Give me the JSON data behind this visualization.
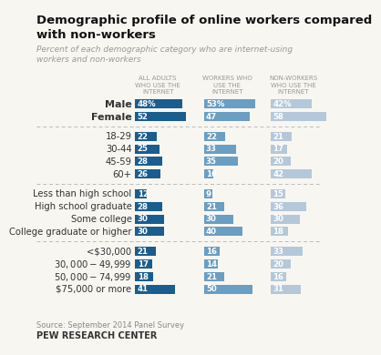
{
  "title": "Demographic profile of online workers compared\nwith non-workers",
  "subtitle": "Percent of each demographic category who are internet-using\nworkers and non-workers",
  "col_headers": [
    "ALL ADULTS\nWHO USE THE\nINTERNET",
    "WORKERS WHO\nUSE THE\nINTERNET",
    "NON-WORKERS\nWHO USE THE\nINTERNET"
  ],
  "color_col1": "#1a5d8f",
  "color_col2": "#6a9ec2",
  "color_col3": "#b4c8da",
  "sections": [
    {
      "rows": [
        {
          "label": "Male",
          "bold": true,
          "vals": [
            48,
            53,
            42
          ],
          "pct": true
        },
        {
          "label": "Female",
          "bold": true,
          "vals": [
            52,
            47,
            58
          ],
          "pct": false
        }
      ]
    },
    {
      "rows": [
        {
          "label": "18-29",
          "bold": false,
          "vals": [
            22,
            22,
            21
          ],
          "pct": false
        },
        {
          "label": "30-44",
          "bold": false,
          "vals": [
            25,
            33,
            17
          ],
          "pct": false
        },
        {
          "label": "45-59",
          "bold": false,
          "vals": [
            28,
            35,
            20
          ],
          "pct": false
        },
        {
          "label": "60+",
          "bold": false,
          "vals": [
            26,
            10,
            42
          ],
          "pct": false
        }
      ]
    },
    {
      "rows": [
        {
          "label": "Less than high school",
          "bold": false,
          "vals": [
            12,
            9,
            15
          ],
          "pct": false
        },
        {
          "label": "High school graduate",
          "bold": false,
          "vals": [
            28,
            21,
            36
          ],
          "pct": false
        },
        {
          "label": "Some college",
          "bold": false,
          "vals": [
            30,
            30,
            30
          ],
          "pct": false
        },
        {
          "label": "College graduate or higher",
          "bold": false,
          "vals": [
            30,
            40,
            18
          ],
          "pct": false
        }
      ]
    },
    {
      "rows": [
        {
          "label": "<$30,000",
          "bold": false,
          "vals": [
            21,
            16,
            33
          ],
          "pct": false
        },
        {
          "label": "$30,000-$49,999",
          "bold": false,
          "vals": [
            17,
            14,
            20
          ],
          "pct": false
        },
        {
          "label": "$50,000-$74,999",
          "bold": false,
          "vals": [
            18,
            21,
            16
          ],
          "pct": false
        },
        {
          "label": "$75,000 or more",
          "bold": false,
          "vals": [
            41,
            50,
            31
          ],
          "pct": false
        }
      ]
    }
  ],
  "source_text": "Source: September 2014 Panel Survey",
  "brand_text": "PEW RESEARCH CENTER",
  "bg_color": "#f8f6f1"
}
